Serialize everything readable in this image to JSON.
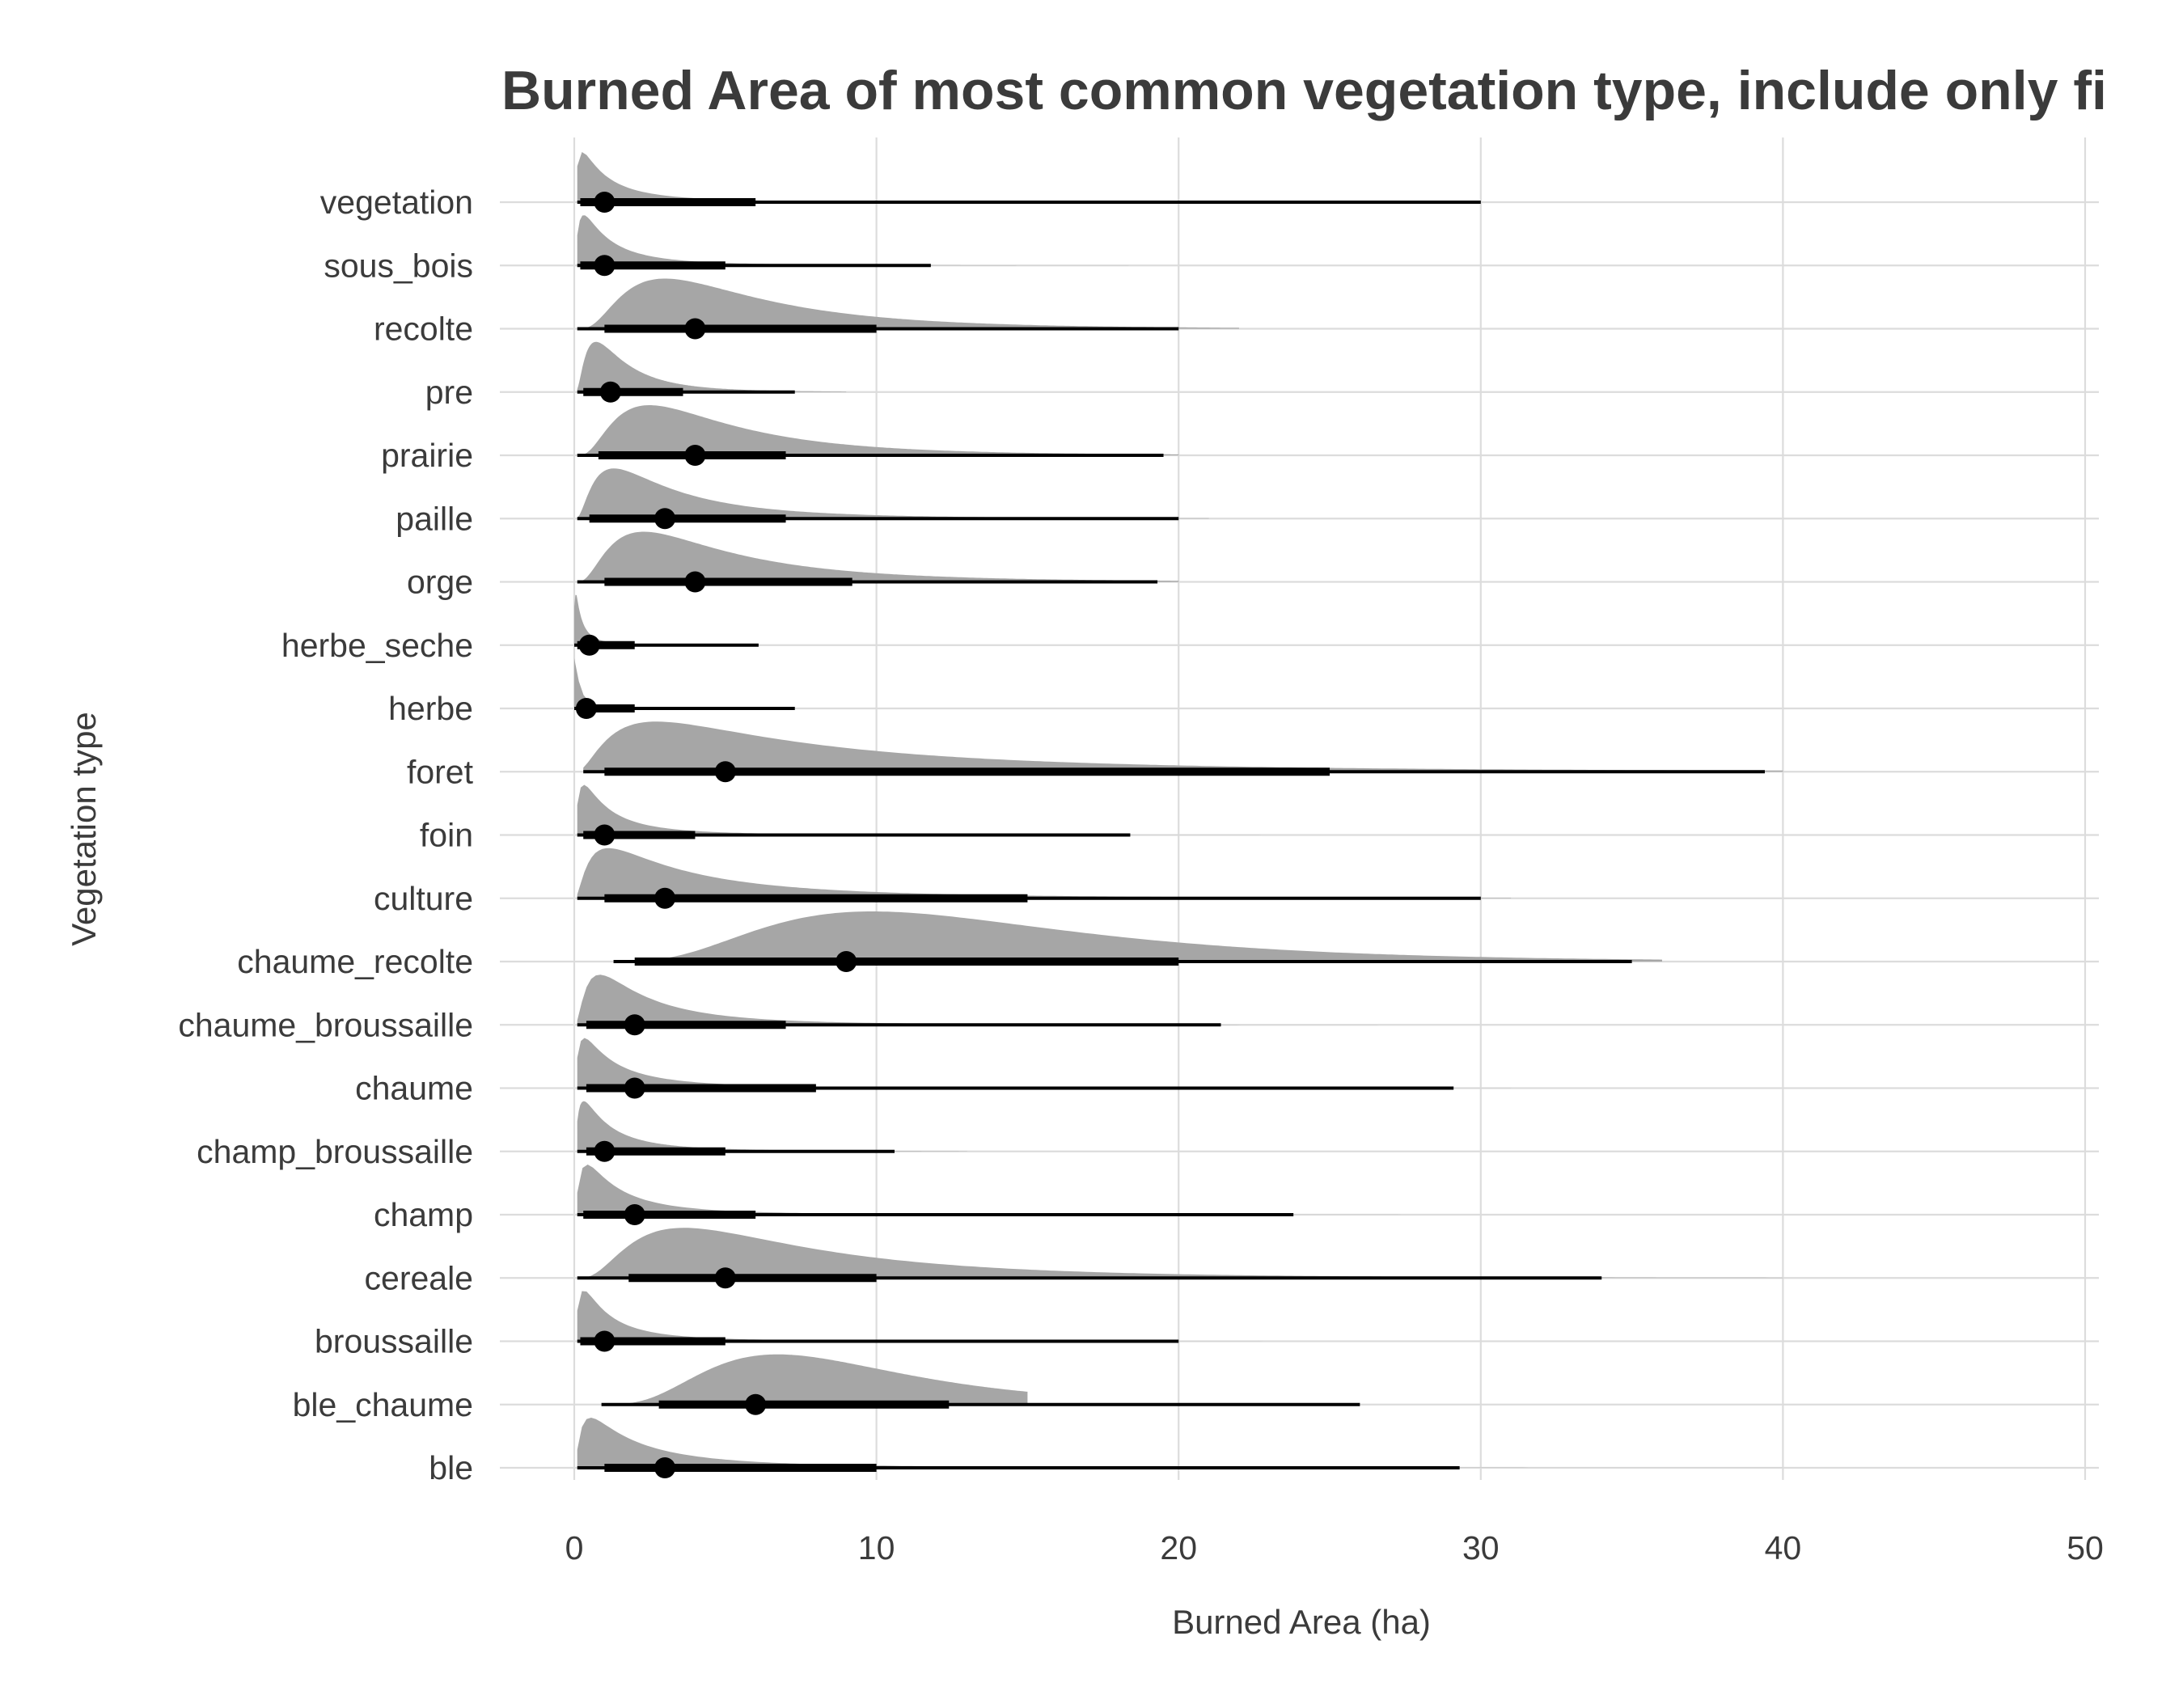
{
  "chart_data": {
    "type": "interval-eye",
    "title": "Burned Area of most common vegetation type, include only fi",
    "xlabel": "Burned Area (ha)",
    "ylabel": "Vegetation type",
    "xlim": [
      0,
      50
    ],
    "xticks": [
      "0",
      "10",
      "20",
      "30",
      "40",
      "50"
    ],
    "grid": true,
    "categories": [
      "ble",
      "ble_chaume",
      "broussaille",
      "cereale",
      "champ",
      "champ_broussaille",
      "chaume",
      "chaume_broussaille",
      "chaume_recolte",
      "culture",
      "foin",
      "foret",
      "herbe",
      "herbe_seche",
      "orge",
      "paille",
      "prairie",
      "pre",
      "recolte",
      "sous_bois",
      "vegetation"
    ],
    "series": [
      {
        "category": "ble",
        "point": 3,
        "inner": [
          1,
          10
        ],
        "outer": [
          0.1,
          29.3
        ],
        "peak": 1.5,
        "spread": 5,
        "tail": 40
      },
      {
        "category": "ble_chaume",
        "point": 6,
        "inner": [
          2.8,
          12.4
        ],
        "outer": [
          0.9,
          26
        ],
        "peak": 6,
        "spread": 5,
        "tail": 15
      },
      {
        "category": "broussaille",
        "point": 1,
        "inner": [
          0.2,
          5
        ],
        "outer": [
          0.1,
          20
        ],
        "peak": 0.8,
        "spread": 2.5,
        "tail": 40
      },
      {
        "category": "cereale",
        "point": 5,
        "inner": [
          1.8,
          10
        ],
        "outer": [
          0.1,
          34
        ],
        "peak": 4.5,
        "spread": 7,
        "tail": 40
      },
      {
        "category": "champ",
        "point": 2,
        "inner": [
          0.3,
          6
        ],
        "outer": [
          0.1,
          23.8
        ],
        "peak": 1,
        "spread": 3,
        "tail": 45
      },
      {
        "category": "champ_broussaille",
        "point": 1,
        "inner": [
          0.4,
          5
        ],
        "outer": [
          0.1,
          10.6
        ],
        "peak": 0.8,
        "spread": 2.5,
        "tail": 13
      },
      {
        "category": "chaume",
        "point": 2,
        "inner": [
          0.4,
          8
        ],
        "outer": [
          0.1,
          29.1
        ],
        "peak": 1,
        "spread": 3.5,
        "tail": 31
      },
      {
        "category": "chaume_broussaille",
        "point": 2,
        "inner": [
          0.4,
          7
        ],
        "outer": [
          0.1,
          21.4
        ],
        "peak": 1.5,
        "spread": 3.5,
        "tail": 40
      },
      {
        "category": "chaume_recolte",
        "point": 9,
        "inner": [
          2,
          20
        ],
        "outer": [
          1.3,
          35
        ],
        "peak": 9,
        "spread": 8,
        "tail": 36
      },
      {
        "category": "culture",
        "point": 3,
        "inner": [
          1,
          15
        ],
        "outer": [
          0.1,
          30
        ],
        "peak": 2.5,
        "spread": 7,
        "tail": 31
      },
      {
        "category": "foin",
        "point": 1,
        "inner": [
          0.3,
          4
        ],
        "outer": [
          0.1,
          18.4
        ],
        "peak": 0.8,
        "spread": 2.5,
        "tail": 30
      },
      {
        "category": "foret",
        "point": 5,
        "inner": [
          1,
          25
        ],
        "outer": [
          0.3,
          39.4
        ],
        "peak": 5,
        "spread": 12,
        "tail": 40
      },
      {
        "category": "herbe",
        "point": 0.4,
        "inner": [
          0.1,
          2
        ],
        "outer": [
          0,
          7.3
        ],
        "peak": 0.15,
        "spread": 0.7,
        "tail": 40
      },
      {
        "category": "herbe_seche",
        "point": 0.5,
        "inner": [
          0.1,
          2
        ],
        "outer": [
          0,
          6.1
        ],
        "peak": 0.2,
        "spread": 0.8,
        "tail": 10
      },
      {
        "category": "orge",
        "point": 4,
        "inner": [
          1,
          9.2
        ],
        "outer": [
          0.1,
          19.3
        ],
        "peak": 3,
        "spread": 5,
        "tail": 20
      },
      {
        "category": "paille",
        "point": 3,
        "inner": [
          0.5,
          7
        ],
        "outer": [
          0.1,
          20
        ],
        "peak": 2,
        "spread": 4,
        "tail": 21
      },
      {
        "category": "prairie",
        "point": 4,
        "inner": [
          0.8,
          7
        ],
        "outer": [
          0.1,
          19.5
        ],
        "peak": 3,
        "spread": 4.5,
        "tail": 20
      },
      {
        "category": "pre",
        "point": 1.2,
        "inner": [
          0.3,
          3.6
        ],
        "outer": [
          0.1,
          7.3
        ],
        "peak": 1,
        "spread": 1.8,
        "tail": 9
      },
      {
        "category": "recolte",
        "point": 4,
        "inner": [
          1,
          10
        ],
        "outer": [
          0.1,
          20
        ],
        "peak": 3.5,
        "spread": 5,
        "tail": 22
      },
      {
        "category": "sous_bois",
        "point": 1,
        "inner": [
          0.2,
          5
        ],
        "outer": [
          0.1,
          11.8
        ],
        "peak": 0.8,
        "spread": 2.5,
        "tail": 22
      },
      {
        "category": "vegetation",
        "point": 1,
        "inner": [
          0.2,
          6
        ],
        "outer": [
          0.1,
          30
        ],
        "peak": 0.8,
        "spread": 2.8,
        "tail": 40
      }
    ]
  },
  "colors": {
    "density": "#a6a6a6",
    "interval": "#000000",
    "grid": "#dcdcdc",
    "text": "#3b3b3b"
  }
}
